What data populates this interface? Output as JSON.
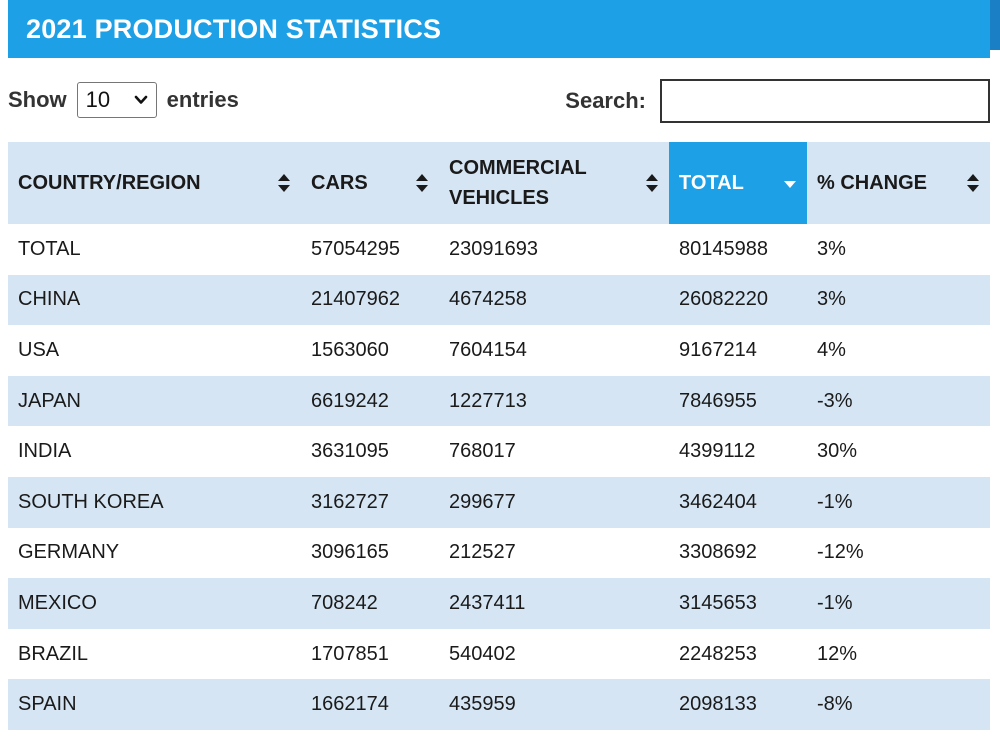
{
  "header": {
    "title": "2021 PRODUCTION STATISTICS"
  },
  "controls": {
    "show_label": "Show",
    "page_length": "10",
    "entries_label": "entries",
    "search_label": "Search:",
    "search_value": ""
  },
  "table": {
    "columns": [
      {
        "label": "COUNTRY/REGION",
        "sort": "none"
      },
      {
        "label": "CARS",
        "sort": "none"
      },
      {
        "label": "COMMERCIAL VEHICLES",
        "sort": "none"
      },
      {
        "label": "TOTAL",
        "sort": "desc"
      },
      {
        "label": "% CHANGE",
        "sort": "none"
      }
    ],
    "rows": [
      {
        "country": "TOTAL",
        "cars": "57054295",
        "commercial": "23091693",
        "total": "80145988",
        "change": "3%"
      },
      {
        "country": "CHINA",
        "cars": "21407962",
        "commercial": "4674258",
        "total": "26082220",
        "change": "3%"
      },
      {
        "country": "USA",
        "cars": "1563060",
        "commercial": "7604154",
        "total": "9167214",
        "change": "4%"
      },
      {
        "country": "JAPAN",
        "cars": "6619242",
        "commercial": "1227713",
        "total": "7846955",
        "change": "-3%"
      },
      {
        "country": "INDIA",
        "cars": "3631095",
        "commercial": "768017",
        "total": "4399112",
        "change": "30%"
      },
      {
        "country": "SOUTH KOREA",
        "cars": "3162727",
        "commercial": "299677",
        "total": "3462404",
        "change": "-1%"
      },
      {
        "country": "GERMANY",
        "cars": "3096165",
        "commercial": "212527",
        "total": "3308692",
        "change": "-12%"
      },
      {
        "country": "MEXICO",
        "cars": "708242",
        "commercial": "2437411",
        "total": "3145653",
        "change": "-1%"
      },
      {
        "country": "BRAZIL",
        "cars": "1707851",
        "commercial": "540402",
        "total": "2248253",
        "change": "12%"
      },
      {
        "country": "SPAIN",
        "cars": "1662174",
        "commercial": "435959",
        "total": "2098133",
        "change": "-8%"
      }
    ]
  },
  "colors": {
    "accent": "#1ea0e6",
    "accent_dark": "#1a7fc4",
    "stripe": "#d5e5f4"
  },
  "icons": {
    "sort_both": "sort-both-icon",
    "sort_desc": "sort-desc-icon",
    "dropdown": "chevron-down-icon"
  }
}
